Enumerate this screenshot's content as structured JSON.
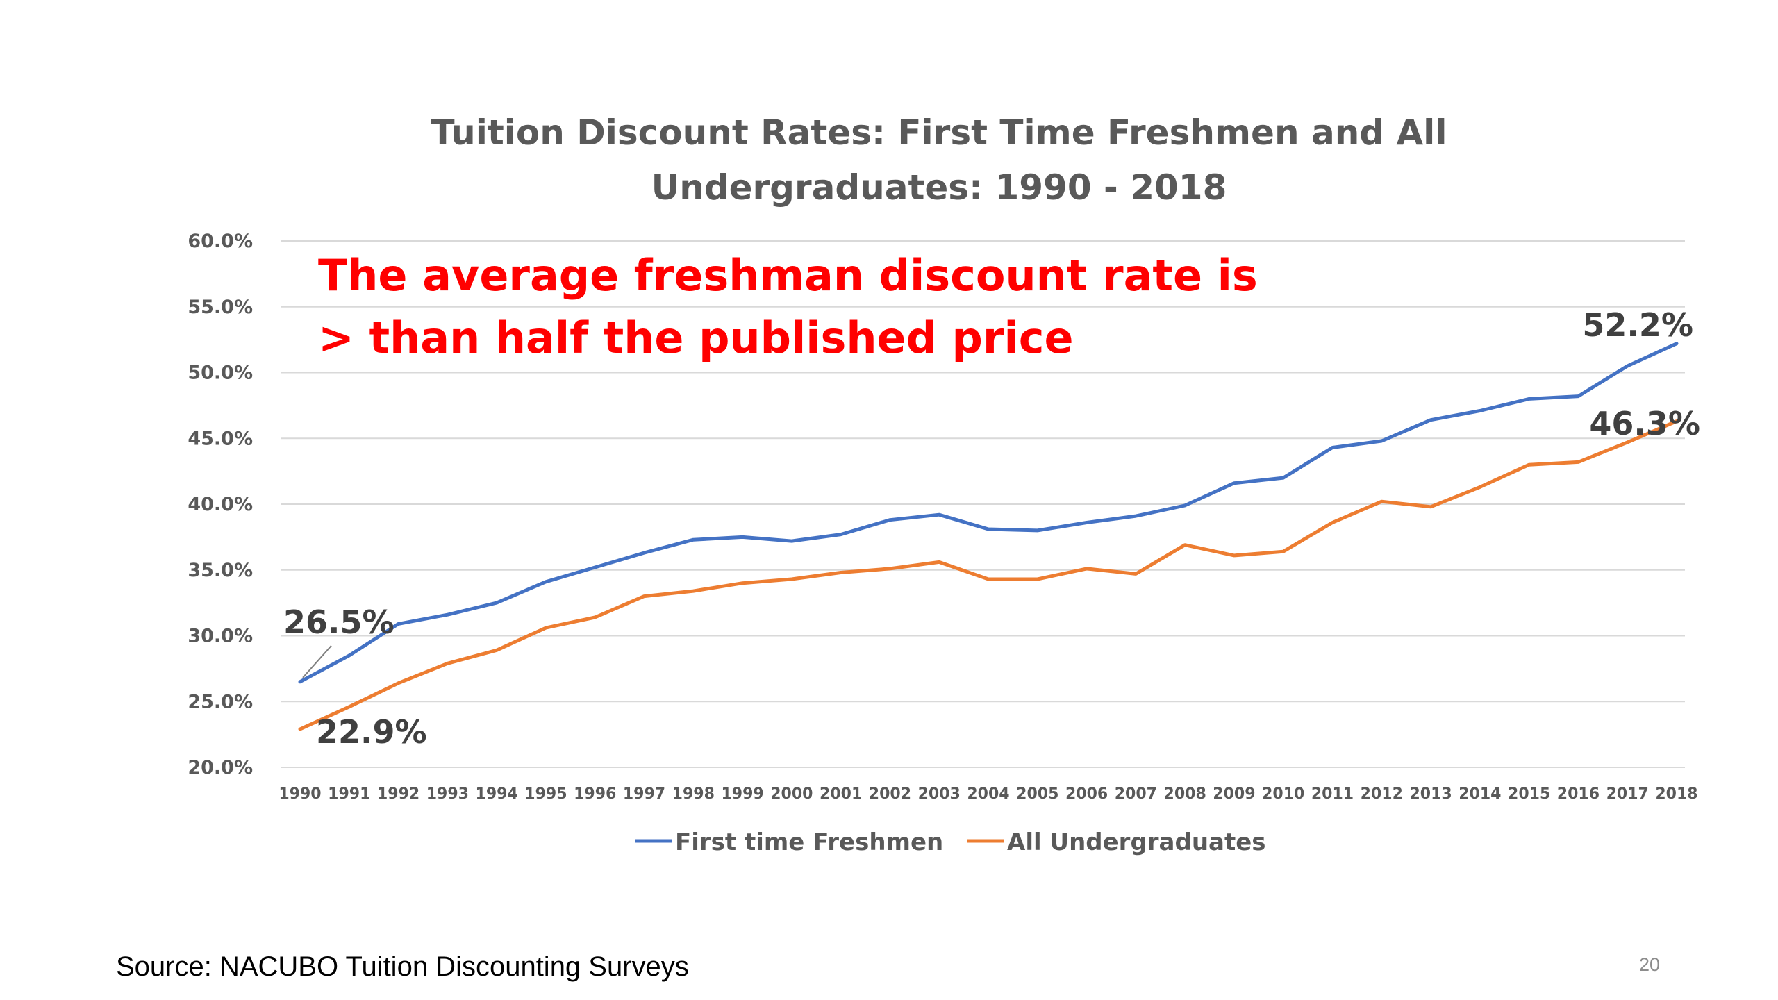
{
  "chart_data": {
    "type": "line",
    "title": "Tuition Discount Rates: First Time Freshmen and All Undergraduates: 1990 - 2018",
    "title_lines": [
      "Tuition Discount Rates: First Time Freshmen and All",
      "Undergraduates: 1990 - 2018"
    ],
    "xlabel": "",
    "ylabel": "",
    "ylim": [
      20.0,
      60.0
    ],
    "y_ticks": [
      "20.0%",
      "25.0%",
      "30.0%",
      "35.0%",
      "40.0%",
      "45.0%",
      "50.0%",
      "55.0%",
      "60.0%"
    ],
    "y_tick_values": [
      20,
      25,
      30,
      35,
      40,
      45,
      50,
      55,
      60
    ],
    "grid": true,
    "legend_position": "bottom",
    "x": [
      "1990",
      "1991",
      "1992",
      "1993",
      "1994",
      "1995",
      "1996",
      "1997",
      "1998",
      "1999",
      "2000",
      "2001",
      "2002",
      "2003",
      "2004",
      "2005",
      "2006",
      "2007",
      "2008",
      "2009",
      "2010",
      "2011",
      "2012",
      "2013",
      "2014",
      "2015",
      "2016",
      "2017",
      "2018"
    ],
    "series": [
      {
        "name": "First time Freshmen",
        "color": "#4472c4",
        "values": [
          26.5,
          28.5,
          30.9,
          31.6,
          32.5,
          34.1,
          35.2,
          36.3,
          37.3,
          37.5,
          37.2,
          37.7,
          38.8,
          39.2,
          38.1,
          38.0,
          38.6,
          39.1,
          39.9,
          41.6,
          42.0,
          44.3,
          44.8,
          46.4,
          47.1,
          48.0,
          48.2,
          50.5,
          52.2
        ]
      },
      {
        "name": "All Undergraduates",
        "color": "#ed7d31",
        "values": [
          22.9,
          24.6,
          26.4,
          27.9,
          28.9,
          30.6,
          31.4,
          33.0,
          33.4,
          34.0,
          34.3,
          34.8,
          35.1,
          35.6,
          34.3,
          34.3,
          35.1,
          34.7,
          36.9,
          36.1,
          36.4,
          38.6,
          40.2,
          39.8,
          41.3,
          43.0,
          43.2,
          44.7,
          46.3
        ]
      }
    ],
    "data_labels": {
      "first_start": "26.5%",
      "first_end": "52.2%",
      "all_start": "22.9%",
      "all_end": "46.3%"
    },
    "annotation_lines": [
      "The average freshman discount rate is",
      "> than half the published price"
    ],
    "colors": {
      "grid": "#d9d9d9",
      "annotation": "#ff0000",
      "text": "#595959"
    }
  },
  "footer": {
    "source": "Source: NACUBO Tuition Discounting Surveys",
    "page_number": "20"
  }
}
